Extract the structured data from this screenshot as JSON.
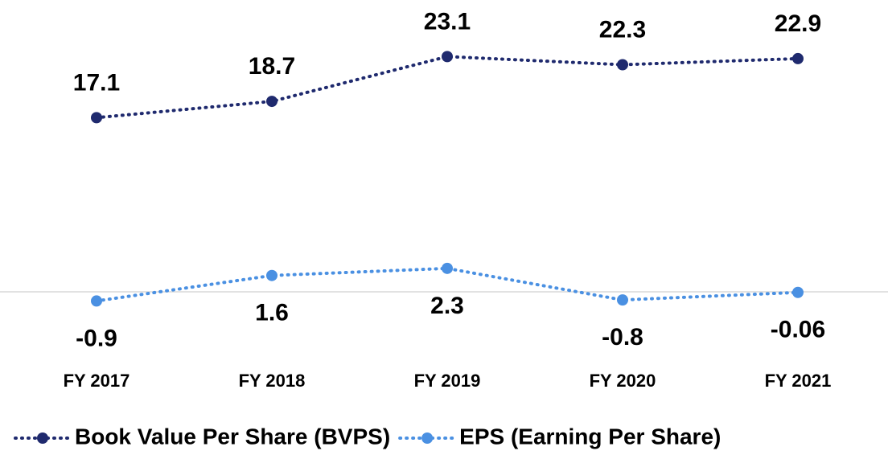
{
  "chart_data": {
    "type": "line",
    "categories": [
      "FY 2017",
      "FY 2018",
      "FY 2019",
      "FY 2020",
      "FY 2021"
    ],
    "series": [
      {
        "name": "Book Value Per Share (BVPS)",
        "color": "#1f2a6e",
        "values": [
          17.1,
          18.7,
          23.1,
          22.3,
          22.9
        ]
      },
      {
        "name": "EPS (Earning Per Share)",
        "color": "#4a90e2",
        "values": [
          -0.9,
          1.6,
          2.3,
          -0.8,
          -0.06
        ]
      }
    ],
    "ylim": [
      -3,
      28
    ],
    "legend": "bottom"
  }
}
